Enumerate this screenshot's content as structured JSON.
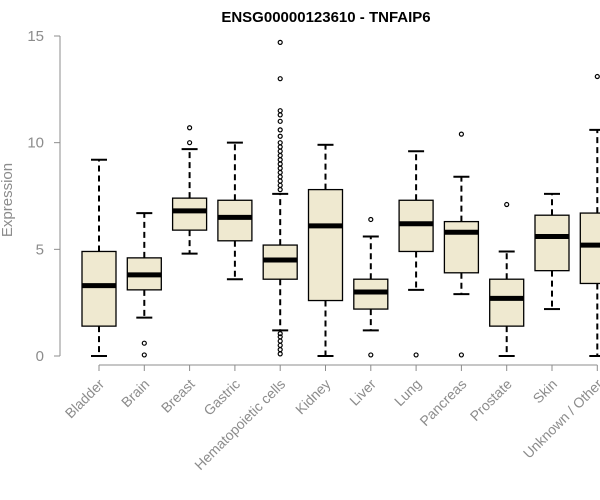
{
  "chart_data": {
    "type": "boxplot",
    "title": "ENSG00000123610 - TNFAIP6",
    "ylabel": "Expression",
    "xlabel": "",
    "ylim": [
      0,
      15
    ],
    "yticks": [
      0,
      5,
      10,
      15
    ],
    "grid": false,
    "box_color": "#efe9d0",
    "line_color": "#000000",
    "categories": [
      "Bladder",
      "Brain",
      "Breast",
      "Gastric",
      "Hematopoietic cells",
      "Kidney",
      "Liver",
      "Lung",
      "Pancreas",
      "Prostate",
      "Skin",
      "Unknown / Other"
    ],
    "boxes": [
      {
        "whislo": 0.0,
        "q1": 1.4,
        "med": 3.3,
        "q3": 4.9,
        "whishi": 9.2,
        "fliers": []
      },
      {
        "whislo": 1.8,
        "q1": 3.1,
        "med": 3.8,
        "q3": 4.6,
        "whishi": 6.7,
        "fliers": [
          0.6,
          0.05
        ]
      },
      {
        "whislo": 4.8,
        "q1": 5.9,
        "med": 6.8,
        "q3": 7.4,
        "whishi": 9.7,
        "fliers": [
          10.0,
          10.7
        ]
      },
      {
        "whislo": 3.6,
        "q1": 5.4,
        "med": 6.5,
        "q3": 7.3,
        "whishi": 10.0,
        "fliers": []
      },
      {
        "whislo": 1.2,
        "q1": 3.6,
        "med": 4.5,
        "q3": 5.2,
        "whishi": 7.6,
        "fliers": [
          0.1,
          0.3,
          0.5,
          0.7,
          0.9,
          1.05,
          7.8,
          8.0,
          8.2,
          8.4,
          8.6,
          8.8,
          9.0,
          9.2,
          9.4,
          9.6,
          9.8,
          10.0,
          10.3,
          10.6,
          11.0,
          11.3,
          11.5,
          13.0,
          14.7
        ]
      },
      {
        "whislo": 0.0,
        "q1": 2.6,
        "med": 6.1,
        "q3": 7.8,
        "whishi": 9.9,
        "fliers": []
      },
      {
        "whislo": 1.2,
        "q1": 2.2,
        "med": 3.0,
        "q3": 3.6,
        "whishi": 5.6,
        "fliers": [
          6.4,
          0.05
        ]
      },
      {
        "whislo": 3.1,
        "q1": 4.9,
        "med": 6.2,
        "q3": 7.3,
        "whishi": 9.6,
        "fliers": [
          0.05
        ]
      },
      {
        "whislo": 2.9,
        "q1": 3.9,
        "med": 5.8,
        "q3": 6.3,
        "whishi": 8.4,
        "fliers": [
          10.4,
          0.05
        ]
      },
      {
        "whislo": 0.0,
        "q1": 1.4,
        "med": 2.7,
        "q3": 3.6,
        "whishi": 4.9,
        "fliers": [
          7.1
        ]
      },
      {
        "whislo": 2.2,
        "q1": 4.0,
        "med": 5.6,
        "q3": 6.6,
        "whishi": 7.6,
        "fliers": []
      },
      {
        "whislo": 0.0,
        "q1": 3.4,
        "med": 5.2,
        "q3": 6.7,
        "whishi": 10.6,
        "fliers": [
          13.1
        ]
      }
    ]
  }
}
